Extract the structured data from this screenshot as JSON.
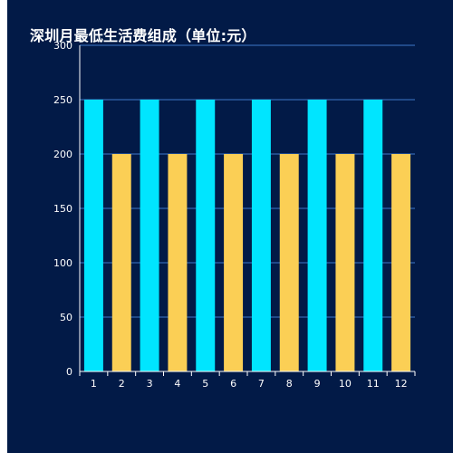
{
  "chart_data": {
    "type": "bar",
    "title": "深圳月最低生活费组成（单位:元）",
    "categories": [
      "1",
      "2",
      "3",
      "4",
      "5",
      "6",
      "7",
      "8",
      "9",
      "10",
      "11",
      "12"
    ],
    "values": [
      250,
      200,
      250,
      200,
      250,
      200,
      250,
      200,
      250,
      200,
      250,
      200
    ],
    "bar_colors": [
      "#00e5ff",
      "#fbcf55"
    ],
    "ylim": [
      0,
      300
    ],
    "yticks": [
      0,
      50,
      100,
      150,
      200,
      250,
      300
    ],
    "grid": true,
    "legend": "none",
    "colors": {
      "background": "#021a47",
      "grid": "#3f78c8",
      "axis": "#ffffff",
      "text": "#ffffff"
    }
  }
}
